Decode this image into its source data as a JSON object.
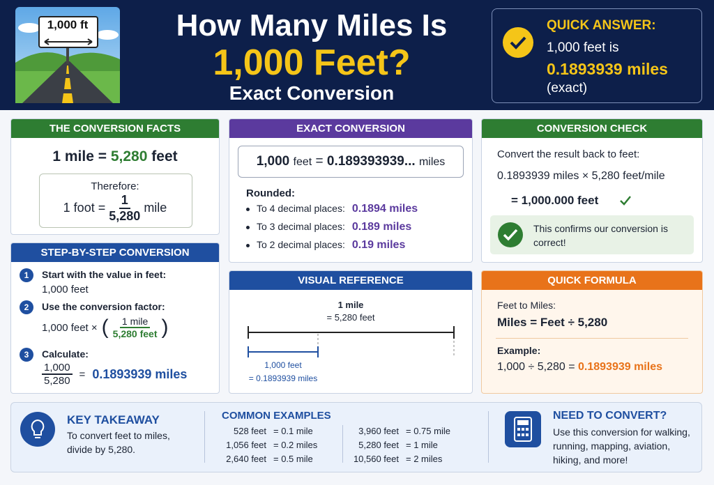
{
  "header": {
    "sign": "1,000 ft",
    "title_line1": "How Many Miles Is",
    "title_line2": "1,000 Feet?",
    "subtitle": "Exact Conversion"
  },
  "quick_answer": {
    "label": "QUICK ANSWER:",
    "line1": "1,000 feet is",
    "value": "0.1893939 miles",
    "note": "(exact)"
  },
  "facts": {
    "title": "THE CONVERSION FACTS",
    "eq_left": "1 mile =",
    "eq_value": "5,280",
    "eq_unit": "feet",
    "therefore": "Therefore:",
    "foot_left": "1 foot =",
    "numerator": "1",
    "denominator": "5,280",
    "unit": "mile"
  },
  "exact": {
    "title": "EXACT CONVERSION",
    "left": "1,000",
    "left_unit": "feet",
    "eq": "=",
    "value": "0.189393939...",
    "unit": "miles",
    "rounded": "Rounded:",
    "items": [
      {
        "label": "To 4 decimal places:",
        "value": "0.1894 miles"
      },
      {
        "label": "To 3 decimal places:",
        "value": "0.189 miles"
      },
      {
        "label": "To 2 decimal places:",
        "value": "0.19 miles"
      }
    ]
  },
  "check": {
    "title": "CONVERSION CHECK",
    "intro": "Convert the result back to feet:",
    "line": "0.1893939 miles × 5,280 feet/mile",
    "result": "= 1,000.000 feet",
    "confirm": "This confirms our conversion is correct!"
  },
  "steps": {
    "title": "STEP-BY-STEP CONVERSION",
    "items": [
      {
        "num": "1",
        "title": "Start with the value in feet:",
        "body": "1,000 feet"
      },
      {
        "num": "2",
        "title": "Use the conversion factor:",
        "left": "1,000 feet ×",
        "numerator": "1 mile",
        "denominator": "5,280 feet"
      },
      {
        "num": "3",
        "title": "Calculate:",
        "numerator": "1,000",
        "denominator": "5,280",
        "eq": "=",
        "result": "0.1893939 miles"
      }
    ]
  },
  "visual": {
    "title": "VISUAL REFERENCE",
    "top_label": "1 mile",
    "top_sub": "= 5,280 feet",
    "bottom_label": "1,000 feet",
    "bottom_sub": "= 0.1893939 miles"
  },
  "formula": {
    "title": "QUICK FORMULA",
    "intro": "Feet to Miles:",
    "formula": "Miles = Feet ÷ 5,280",
    "example_label": "Example:",
    "example": "1,000 ÷ 5,280 =",
    "example_result": "0.1893939 miles"
  },
  "footer": {
    "takeaway_title": "KEY TAKEAWAY",
    "takeaway_text": "To convert feet to miles, divide by 5,280.",
    "examples_title": "COMMON EXAMPLES",
    "examples": [
      [
        "528 feet",
        "= 0.1 mile"
      ],
      [
        "1,056 feet",
        "= 0.2 miles"
      ],
      [
        "2,640 feet",
        "= 0.5 mile"
      ],
      [
        "3,960 feet",
        "= 0.75 mile"
      ],
      [
        "5,280 feet",
        "= 1 mile"
      ],
      [
        "10,560 feet",
        "= 2 miles"
      ]
    ],
    "need_title": "NEED TO CONVERT?",
    "need_text": "Use this conversion for walking, running, mapping, aviation, hiking, and more!"
  }
}
